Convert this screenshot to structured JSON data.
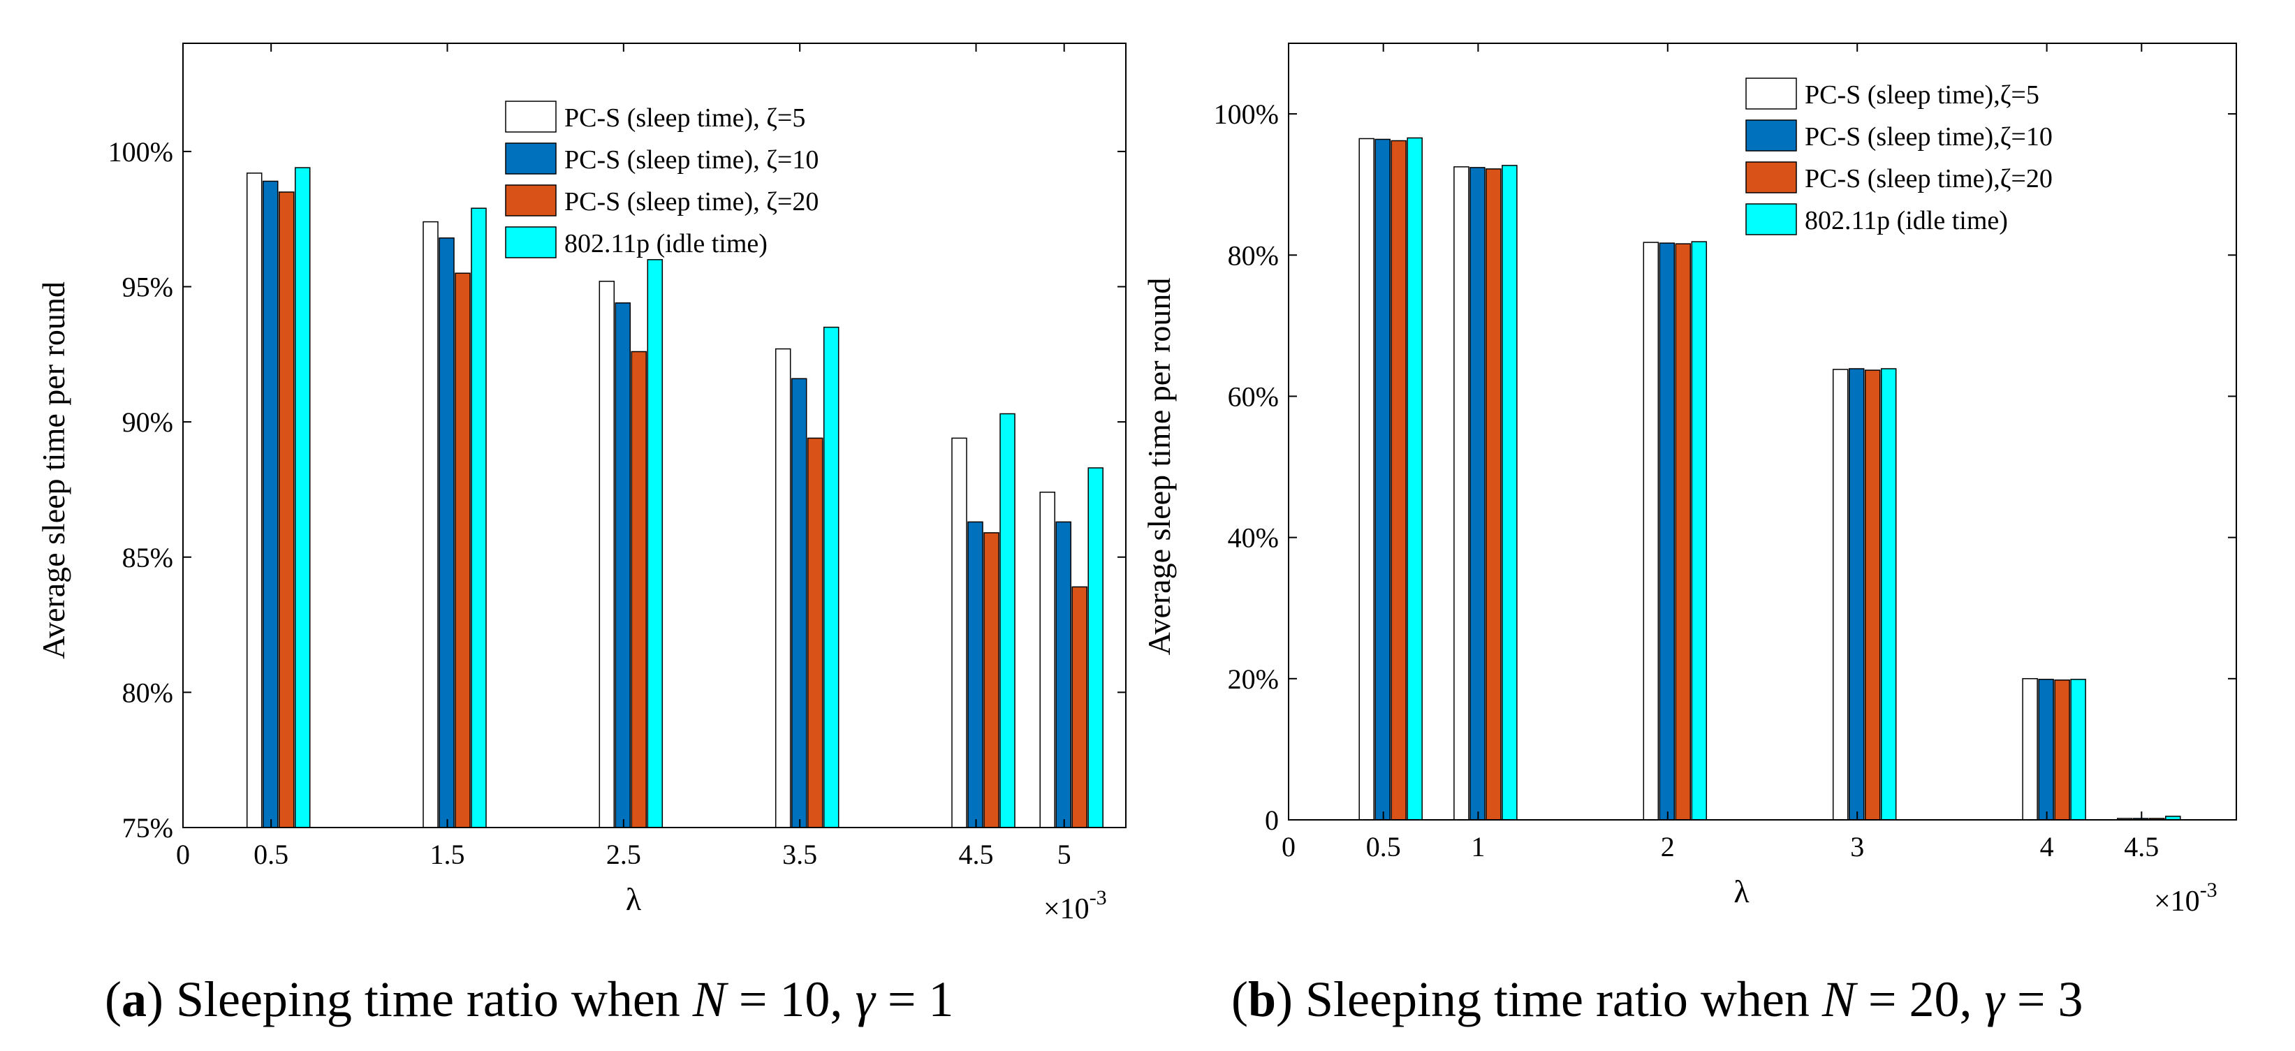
{
  "chart_data": [
    {
      "type": "bar",
      "panel": "a",
      "x": [
        0.5,
        1.5,
        2.5,
        3.5,
        4.5,
        5
      ],
      "categories": [
        "0.5",
        "1.5",
        "2.5",
        "3.5",
        "4.5",
        "5"
      ],
      "xticks": [
        "0",
        "0.5",
        "1.5",
        "2.5",
        "3.5",
        "4.5",
        "5"
      ],
      "xtick_values": [
        0,
        0.5,
        1.5,
        2.5,
        3.5,
        4.5,
        5
      ],
      "xlim": [
        0,
        5.35
      ],
      "ylim": [
        75,
        104
      ],
      "yticks": [
        "75%",
        "80%",
        "85%",
        "90%",
        "95%",
        "100%"
      ],
      "ytick_values": [
        75,
        80,
        85,
        90,
        95,
        100
      ],
      "xlabel": "λ",
      "ylabel": "Average sleep time per round",
      "x_exponent": {
        "base": "×10",
        "power": "-3"
      },
      "legend_position": "top-right",
      "series": [
        {
          "name": "PC-S (sleep time), ζ=5",
          "color": "#ffffff",
          "values": [
            99.2,
            97.4,
            95.2,
            92.7,
            89.4,
            87.4
          ]
        },
        {
          "name": "PC-S (sleep time), ζ=10",
          "color": "#0072bd",
          "values": [
            98.9,
            96.8,
            94.4,
            91.6,
            86.3,
            86.3
          ]
        },
        {
          "name": "PC-S (sleep time), ζ=20",
          "color": "#d95319",
          "values": [
            98.5,
            95.5,
            92.6,
            89.4,
            85.9,
            83.9
          ]
        },
        {
          "name": "802.11p (idle time)",
          "color": "#00ffff",
          "values": [
            99.4,
            97.9,
            96.0,
            93.5,
            90.3,
            88.3
          ]
        }
      ],
      "caption": {
        "label": "(a)",
        "text": "Sleeping time ratio when",
        "n_var": "N",
        "n_val": "= 10,",
        "g_var": "γ",
        "g_val": "= 1"
      }
    },
    {
      "type": "bar",
      "panel": "b",
      "x": [
        0.5,
        1,
        2,
        3,
        4,
        4.5
      ],
      "categories": [
        "0.5",
        "1",
        "2",
        "3",
        "4",
        "4.5"
      ],
      "xticks": [
        "0",
        "0.5",
        "1",
        "2",
        "3",
        "4",
        "4.5"
      ],
      "xtick_values": [
        0,
        0.5,
        1,
        2,
        3,
        4,
        4.5
      ],
      "xlim": [
        0,
        5
      ],
      "ylim": [
        0,
        110
      ],
      "yticks": [
        "0",
        "20%",
        "40%",
        "60%",
        "80%",
        "100%"
      ],
      "ytick_values": [
        0,
        20,
        40,
        60,
        80,
        100
      ],
      "xlabel": "λ",
      "ylabel": "Average sleep time per round",
      "x_exponent": {
        "base": "×10",
        "power": "-3"
      },
      "legend_position": "top-right",
      "series": [
        {
          "name": "PC-S (sleep time),ζ=5",
          "color": "#ffffff",
          "values": [
            96.5,
            92.5,
            81.8,
            63.8,
            20.0,
            0.2
          ]
        },
        {
          "name": "PC-S (sleep time),ζ=10",
          "color": "#0072bd",
          "values": [
            96.4,
            92.4,
            81.7,
            63.9,
            19.9,
            0.2
          ]
        },
        {
          "name": "PC-S (sleep time),ζ=20",
          "color": "#d95319",
          "values": [
            96.2,
            92.2,
            81.6,
            63.7,
            19.8,
            0.2
          ]
        },
        {
          "name": "802.11p (idle time)",
          "color": "#00ffff",
          "values": [
            96.6,
            92.7,
            81.9,
            63.9,
            19.9,
            0.5
          ]
        }
      ],
      "caption": {
        "label": "(b)",
        "text": "Sleeping time ratio when",
        "n_var": "N",
        "n_val": "= 20,",
        "g_var": "γ",
        "g_val": "= 3"
      }
    }
  ]
}
